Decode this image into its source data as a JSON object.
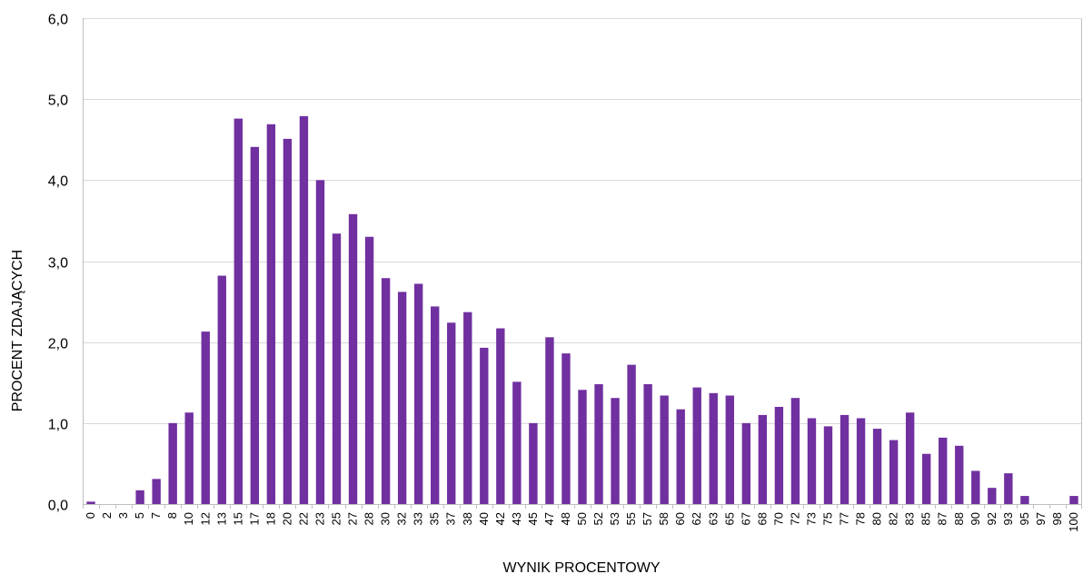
{
  "chart_data": {
    "type": "bar",
    "title": "",
    "xlabel": "WYNIK PROCENTOWY",
    "ylabel": "PROCENT ZDAJĄCYCH",
    "ylim": [
      0,
      6
    ],
    "y_ticks": [
      "0,0",
      "1,0",
      "2,0",
      "3,0",
      "4,0",
      "5,0",
      "6,0"
    ],
    "grid": true,
    "legend": "none",
    "bar_color": "#7030a0",
    "categories": [
      "0",
      "2",
      "3",
      "5",
      "7",
      "8",
      "10",
      "12",
      "13",
      "15",
      "17",
      "18",
      "20",
      "22",
      "23",
      "25",
      "27",
      "28",
      "30",
      "32",
      "33",
      "35",
      "37",
      "38",
      "40",
      "42",
      "43",
      "45",
      "47",
      "48",
      "50",
      "52",
      "53",
      "55",
      "57",
      "58",
      "60",
      "62",
      "63",
      "65",
      "67",
      "68",
      "70",
      "72",
      "73",
      "75",
      "77",
      "78",
      "80",
      "82",
      "83",
      "85",
      "87",
      "88",
      "90",
      "92",
      "93",
      "95",
      "97",
      "98",
      "100"
    ],
    "values": [
      0.03,
      0.0,
      0.0,
      0.17,
      0.31,
      1.0,
      1.13,
      2.13,
      2.82,
      4.76,
      4.41,
      4.69,
      4.51,
      4.79,
      4.0,
      3.34,
      3.58,
      3.3,
      2.79,
      2.62,
      2.72,
      2.44,
      2.24,
      2.37,
      1.93,
      2.17,
      1.51,
      1.0,
      2.06,
      1.86,
      1.41,
      1.48,
      1.31,
      1.72,
      1.48,
      1.34,
      1.17,
      1.44,
      1.37,
      1.34,
      1.0,
      1.1,
      1.2,
      1.31,
      1.06,
      0.96,
      1.1,
      1.06,
      0.93,
      0.79,
      1.13,
      0.62,
      0.82,
      0.72,
      0.41,
      0.2,
      0.38,
      0.1,
      0.0,
      0.0,
      0.1
    ]
  }
}
